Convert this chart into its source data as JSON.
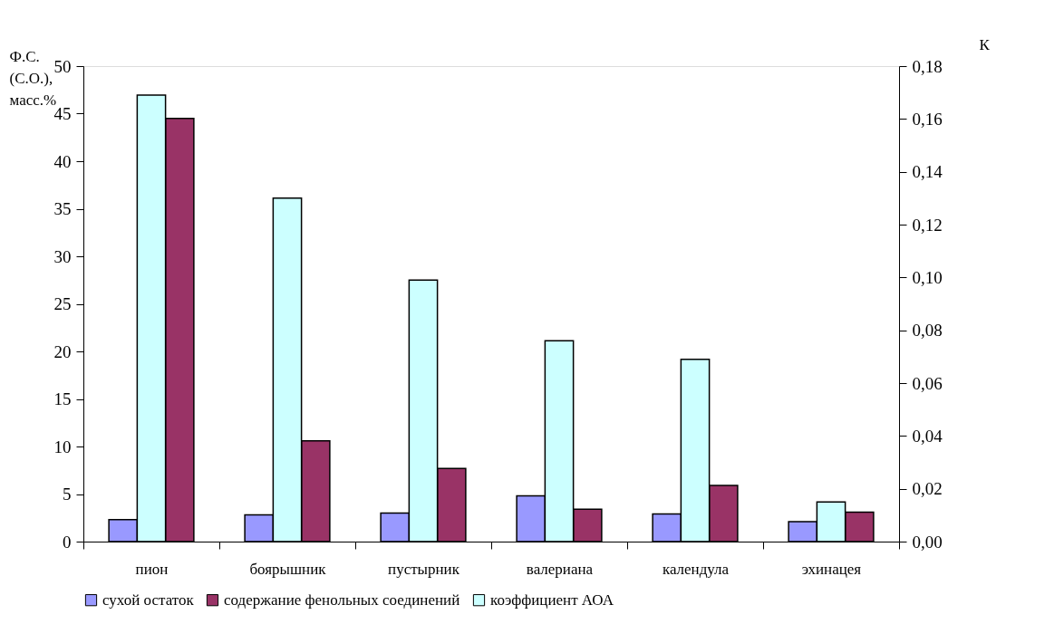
{
  "chart_data": {
    "type": "bar",
    "ylabel": "Ф.С. (С.О.), масс.%",
    "y2label": "К",
    "categories": [
      "пион",
      "боярышник",
      "пустырник",
      "валериана",
      "календула",
      "эхинацея"
    ],
    "series": [
      {
        "name": "сухой остаток",
        "color": "#9999ff",
        "values": [
          2.3,
          2.8,
          3.0,
          4.8,
          2.9,
          2.1
        ]
      },
      {
        "name": "коэффициент АОА",
        "color": "#ccffff",
        "axis": "y2",
        "values": [
          0.169,
          0.13,
          0.099,
          0.076,
          0.069,
          0.015
        ]
      },
      {
        "name": "содержание фенольных соединений",
        "color": "#993366",
        "values": [
          44.5,
          10.6,
          7.7,
          3.4,
          5.9,
          3.1
        ]
      }
    ],
    "ylim": [
      0,
      50
    ],
    "yticks": [
      0,
      5,
      10,
      15,
      20,
      25,
      30,
      35,
      40,
      45,
      50
    ],
    "y2lim": [
      0,
      0.18
    ],
    "y2ticks": [
      {
        "value": 0,
        "label": "0,00"
      },
      {
        "value": 0.02,
        "label": "0,02"
      },
      {
        "value": 0.04,
        "label": "0,04"
      },
      {
        "value": 0.06,
        "label": "0,06"
      },
      {
        "value": 0.08,
        "label": "0,08"
      },
      {
        "value": 0.1,
        "label": "0,10"
      },
      {
        "value": 0.12,
        "label": "0,12"
      },
      {
        "value": 0.14,
        "label": "0,14"
      },
      {
        "value": 0.16,
        "label": "0,16"
      },
      {
        "value": 0.18,
        "label": "0,18"
      }
    ],
    "grid": false,
    "legend": "bottom"
  }
}
